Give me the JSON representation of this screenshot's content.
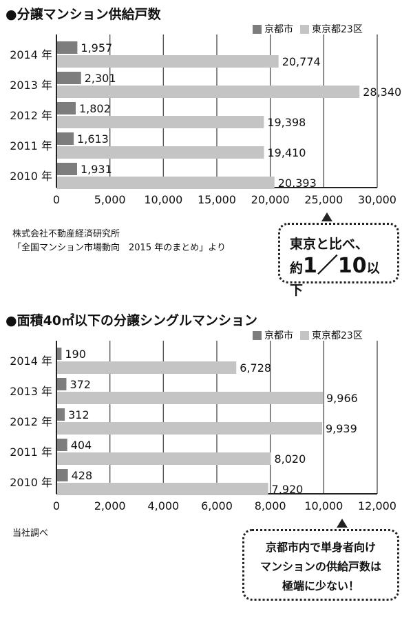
{
  "chart1": {
    "title": "●分譲マンション供給戸数",
    "legend": {
      "kyoto": "京都市",
      "tokyo": "東京都23区"
    },
    "source_line1": "株式会社不動産経済研究所",
    "source_line2": "「全国マンション市場動向　2015 年のまとめ」より",
    "callout_line1": "東京と比べ、",
    "callout_prefix": "約",
    "callout_big": "1／10",
    "callout_suffix": "以下"
  },
  "chart2": {
    "title": "●面積40㎡以下の分譲シングルマンション",
    "legend": {
      "kyoto": "京都市",
      "tokyo": "東京都23区"
    },
    "source": "当社調べ",
    "callout_line1": "京都市内で単身者向け",
    "callout_line2": "マンションの供給戸数は",
    "callout_line3": "極端に少ない！"
  },
  "chart_data": [
    {
      "type": "bar",
      "orientation": "horizontal",
      "title": "●分譲マンション供給戸数",
      "categories": [
        "2014 年",
        "2013 年",
        "2012 年",
        "2011 年",
        "2010 年"
      ],
      "series": [
        {
          "name": "京都市",
          "values": [
            1957,
            2301,
            1802,
            1613,
            1931
          ],
          "labels": [
            "1,957",
            "2,301",
            "1,802",
            "1,613",
            "1,931"
          ],
          "color": "#7d7d7d"
        },
        {
          "name": "東京都23区",
          "values": [
            20774,
            28340,
            19398,
            19410,
            20393
          ],
          "labels": [
            "20,774",
            "28,340",
            "19,398",
            "19,410",
            "20,393"
          ],
          "color": "#c4c4c4"
        }
      ],
      "xlim": [
        0,
        30000
      ],
      "xticks": [
        0,
        5000,
        10000,
        15000,
        20000,
        25000,
        30000
      ],
      "xtick_labels": [
        "0",
        "5,000",
        "10,000",
        "15,000",
        "20,000",
        "25,000",
        "30,000"
      ],
      "grid": "vertical"
    },
    {
      "type": "bar",
      "orientation": "horizontal",
      "title": "●面積40㎡以下の分譲シングルマンション",
      "categories": [
        "2014 年",
        "2013 年",
        "2012 年",
        "2011 年",
        "2010 年"
      ],
      "series": [
        {
          "name": "京都市",
          "values": [
            190,
            372,
            312,
            404,
            428
          ],
          "labels": [
            "190",
            "372",
            "312",
            "404",
            "428"
          ],
          "color": "#7d7d7d"
        },
        {
          "name": "東京都23区",
          "values": [
            6728,
            9966,
            9939,
            8020,
            7920
          ],
          "labels": [
            "6,728",
            "9,966",
            "9,939",
            "8,020",
            "7,920"
          ],
          "color": "#c4c4c4"
        }
      ],
      "xlim": [
        0,
        12000
      ],
      "xticks": [
        0,
        2000,
        4000,
        6000,
        8000,
        10000,
        12000
      ],
      "xtick_labels": [
        "0",
        "2,000",
        "4,000",
        "6,000",
        "8,000",
        "10,000",
        "12,000"
      ],
      "grid": "vertical"
    }
  ]
}
